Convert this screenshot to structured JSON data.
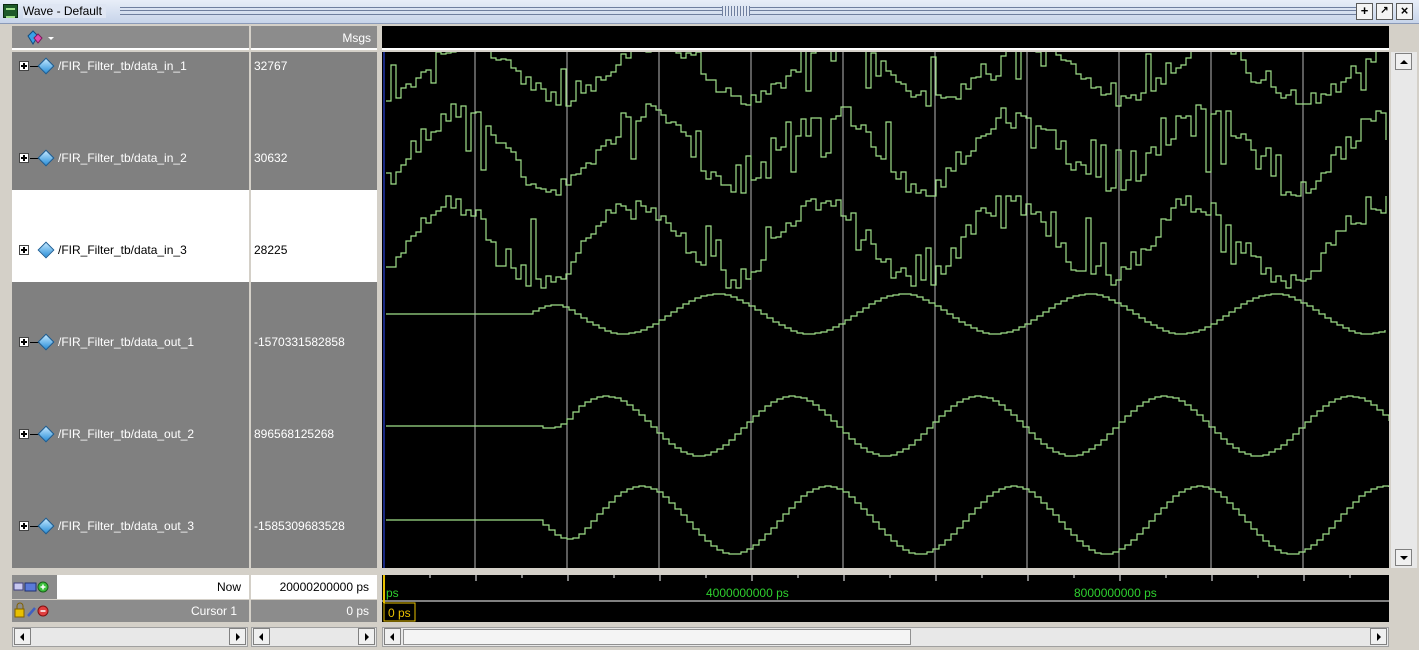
{
  "window": {
    "title": "Wave - Default",
    "buttons": [
      "+",
      "↗",
      "×"
    ]
  },
  "header": {
    "msgs_label": "Msgs"
  },
  "signals": [
    {
      "name": "/FIR_Filter_tb/data_in_1",
      "value": "32767",
      "selected": false
    },
    {
      "name": "/FIR_Filter_tb/data_in_2",
      "value": "30632",
      "selected": false
    },
    {
      "name": "/FIR_Filter_tb/data_in_3",
      "value": "28225",
      "selected": true
    },
    {
      "name": "/FIR_Filter_tb/data_out_1",
      "value": "-1570331582858",
      "selected": false
    },
    {
      "name": "/FIR_Filter_tb/data_out_2",
      "value": "896568125268",
      "selected": false
    },
    {
      "name": "/FIR_Filter_tb/data_out_3",
      "value": "-1585309683528",
      "selected": false
    }
  ],
  "status": {
    "now_label": "Now",
    "now_value": "20000200000 ps",
    "cursor_label": "Cursor 1",
    "cursor_value": "0 ps"
  },
  "timeline": {
    "start_label": "ps",
    "tick_labels": [
      "4000000000 ps",
      "8000000000 ps"
    ],
    "cursor_time": "0 ps"
  },
  "colors": {
    "wave": "#9fe08a",
    "grid": "#b8b8b8",
    "cursor": "#e8c000",
    "timeline_text": "#2ecf2e"
  }
}
